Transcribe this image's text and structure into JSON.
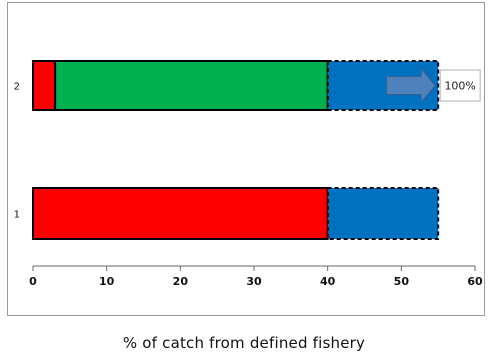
{
  "chart_data": {
    "type": "bar",
    "orientation": "horizontal",
    "stacked": true,
    "title": "",
    "xlabel": "% of catch from defined fishery",
    "ylabel": "",
    "xlim": [
      0,
      60
    ],
    "xticks": [
      0,
      10,
      20,
      30,
      40,
      50,
      60
    ],
    "grid": false,
    "categories": [
      "2",
      "1"
    ],
    "bars": [
      {
        "category": "2",
        "segments": [
          {
            "start": 0,
            "end": 3,
            "color": "#ff0000",
            "border": "solid"
          },
          {
            "start": 3,
            "end": 40,
            "color": "#00b050",
            "border": "solid"
          },
          {
            "start": 40,
            "end": 55,
            "color": "#0070c0",
            "border": "dashed"
          }
        ],
        "arrow": {
          "from": 48,
          "to": 55,
          "color": "#4f81bd"
        }
      },
      {
        "category": "1",
        "segments": [
          {
            "start": 0,
            "end": 40,
            "color": "#ff0000",
            "border": "solid"
          },
          {
            "start": 40,
            "end": 55,
            "color": "#0070c0",
            "border": "dashed"
          }
        ]
      }
    ],
    "annotation": {
      "text": "100%",
      "category": "2",
      "x": 55
    }
  }
}
